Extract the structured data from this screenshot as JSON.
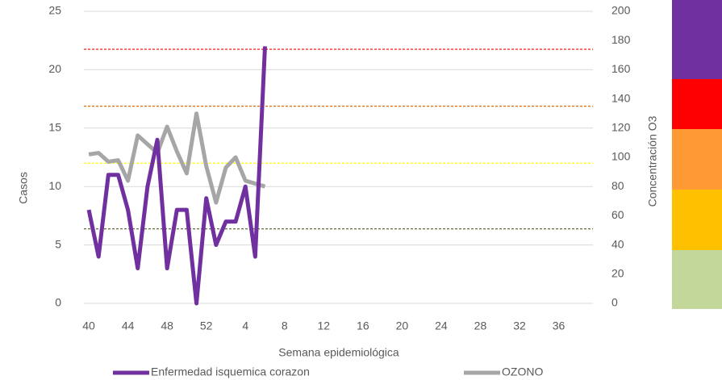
{
  "chart_data": {
    "type": "line",
    "x_label": "Semana epidemiológica",
    "y_label": "Casos",
    "y2_label": "Concentración O3",
    "categories": [
      40,
      null,
      null,
      null,
      44,
      null,
      null,
      null,
      48,
      null,
      null,
      null,
      52,
      null,
      null,
      null,
      4,
      null,
      null,
      null,
      8,
      null,
      null,
      null,
      12,
      null,
      null,
      null,
      16,
      null,
      null,
      null,
      20,
      null,
      null,
      null,
      24,
      null,
      null,
      null,
      28,
      null,
      null,
      null,
      32,
      null,
      null,
      null,
      36,
      null,
      null,
      null
    ],
    "series": [
      {
        "name": "Enfermedad isquemica corazon",
        "color": "#7030a0",
        "values": [
          8,
          4,
          11,
          11,
          8,
          3,
          10,
          14,
          3,
          8,
          8,
          0,
          9,
          5,
          7,
          7,
          10,
          4,
          22,
          null,
          null,
          null,
          null,
          null,
          null,
          null,
          null,
          null,
          null,
          null,
          null,
          null,
          null,
          null,
          null,
          null,
          null,
          null,
          null,
          null,
          null,
          null,
          null,
          null,
          null,
          null,
          null,
          null,
          null,
          null,
          null,
          null
        ]
      },
      {
        "name": "OZONO",
        "color": "#a6a6a6",
        "axis": "y2",
        "values": [
          102,
          103,
          97,
          98,
          84,
          115,
          109,
          103,
          121,
          104,
          89,
          130,
          94,
          69,
          93,
          100,
          84,
          82,
          80,
          null,
          null,
          null,
          null,
          null,
          null,
          null,
          null,
          null,
          null,
          null,
          null,
          null,
          null,
          null,
          null,
          null,
          null,
          null,
          null,
          null,
          null,
          null,
          null,
          null,
          null,
          null,
          null,
          null,
          null,
          null,
          null,
          null
        ]
      }
    ],
    "ylim": [
      0,
      25
    ],
    "yticks": [
      0,
      5,
      10,
      15,
      20,
      25
    ],
    "y2lim": [
      0,
      200
    ],
    "y2ticks": [
      0,
      20,
      40,
      60,
      80,
      100,
      120,
      140,
      160,
      180,
      200
    ],
    "reference_lines": [
      {
        "value": 174,
        "color": "#ff0000"
      },
      {
        "value": 135,
        "color": "#e46c0a"
      },
      {
        "value": 96,
        "color": "#ffff00"
      },
      {
        "value": 51,
        "color": "#4f6228"
      }
    ],
    "grid": true
  }
}
